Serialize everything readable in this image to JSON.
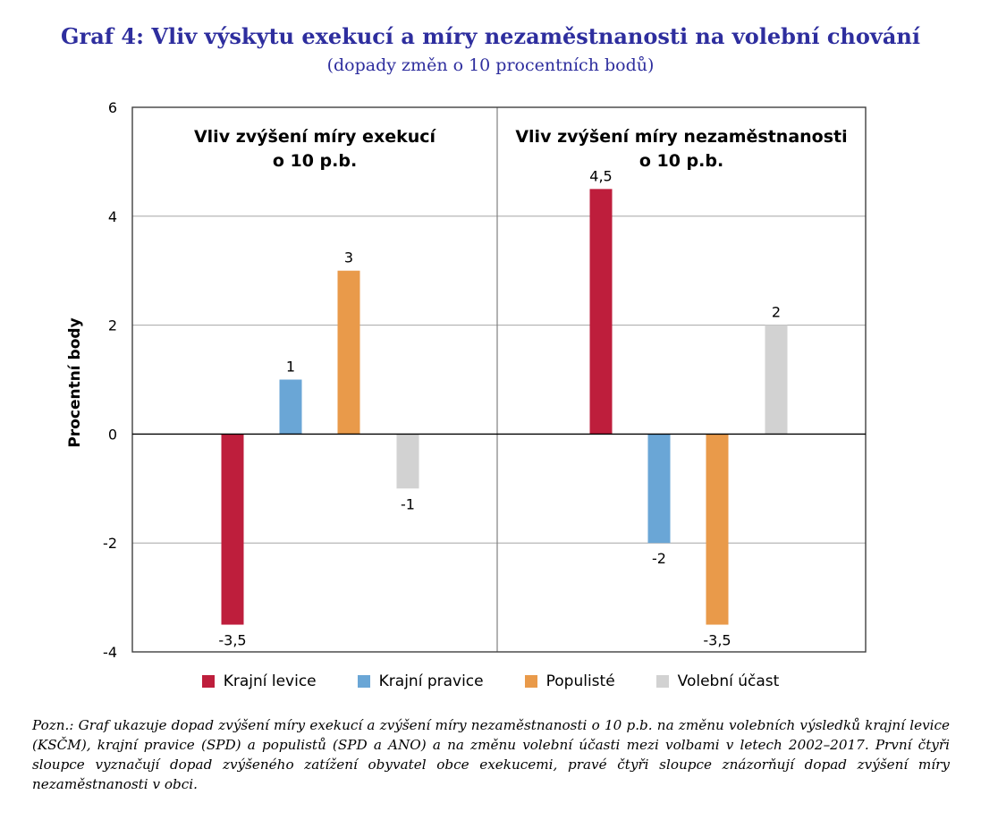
{
  "title": "Graf 4: Vliv výskytu exekucí a míry nezaměstnanosti na volební chování",
  "subtitle": "(dopady změn o 10 procentních bodů)",
  "note": "Pozn.: Graf ukazuje dopad zvýšení míry exekucí a zvýšení míry nezaměstnanosti o 10 p.b. na změnu volebních výsledků krajní levice (KSČM), krajní pravice (SPD) a populistů (SPD a ANO) a na změnu volební účasti mezi volbami v letech 2002–2017. První čtyři sloupce vyznačují dopad zvýšeného zatížení obyvatel obce exekucemi, pravé čtyři sloupce znázorňují dopad zvýšení míry nezaměstnanosti v obci.",
  "chart_data": {
    "type": "bar",
    "ylabel": "Procentní body",
    "ylim": [
      -4,
      6
    ],
    "yticks": [
      "-4",
      "-2",
      "0",
      "2",
      "4",
      "6"
    ],
    "grid": true,
    "legend_position": "bottom",
    "series": [
      {
        "name": "Krajní levice",
        "color": "#be1e3c"
      },
      {
        "name": "Krajní pravice",
        "color": "#6aa6d6"
      },
      {
        "name": "Populisté",
        "color": "#e99a4a"
      },
      {
        "name": "Volební účast",
        "color": "#d2d2d2"
      }
    ],
    "panels": [
      {
        "title_line1": "Vliv zvýšení míry exekucí",
        "title_line2": "o 10 p.b.",
        "values": [
          -3.5,
          1,
          3,
          -1
        ],
        "labels": [
          "-3,5",
          "1",
          "3",
          "-1"
        ]
      },
      {
        "title_line1": "Vliv zvýšení míry nezaměstnanosti",
        "title_line2": "o 10 p.b.",
        "values": [
          4.5,
          -2,
          -3.5,
          2
        ],
        "labels": [
          "4,5",
          "-2",
          "-3,5",
          "2"
        ]
      }
    ]
  }
}
